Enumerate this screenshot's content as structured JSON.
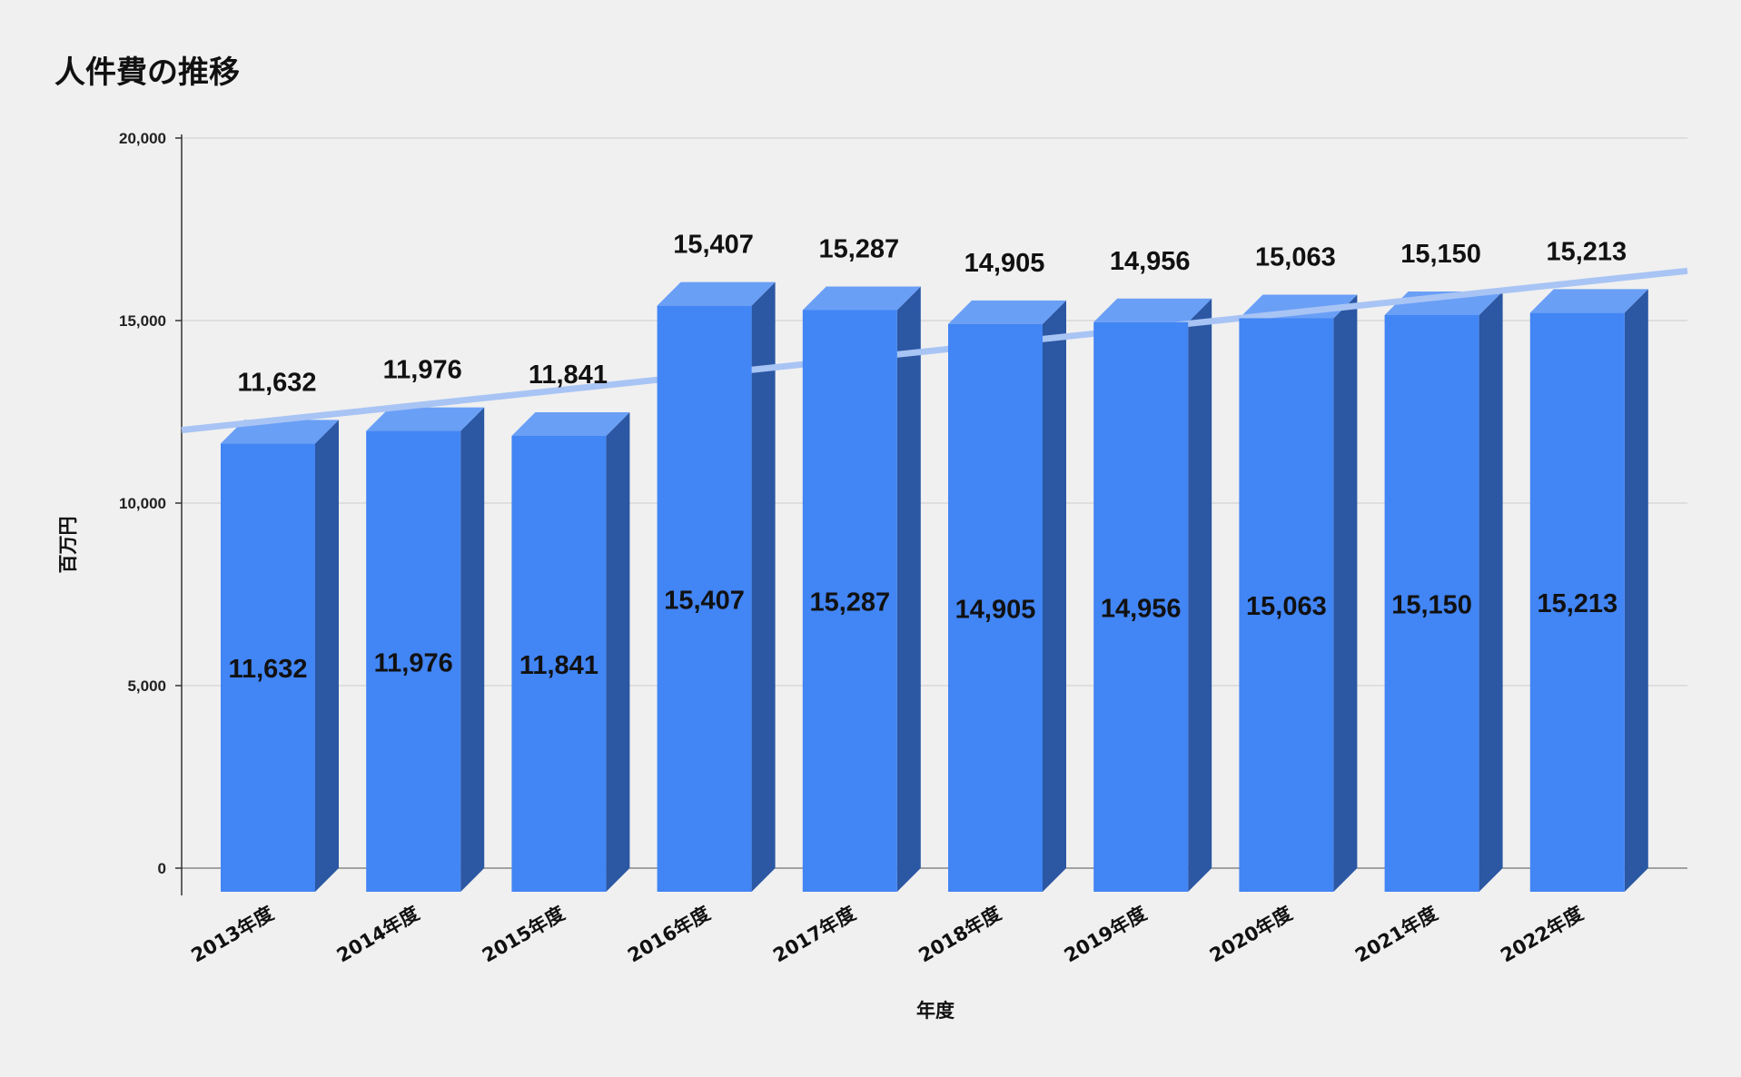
{
  "chart_data": {
    "type": "bar",
    "title": "人件費の推移",
    "xlabel": "年度",
    "ylabel": "百万円",
    "categories": [
      "2013年度",
      "2014年度",
      "2015年度",
      "2016年度",
      "2017年度",
      "2018年度",
      "2019年度",
      "2020年度",
      "2021年度",
      "2022年度"
    ],
    "values": [
      11632,
      11976,
      11841,
      15407,
      15287,
      14905,
      14956,
      15063,
      15150,
      15213
    ],
    "data_labels": [
      "11,632",
      "11,976",
      "11,841",
      "15,407",
      "15,287",
      "14,905",
      "14,956",
      "15,063",
      "15,150",
      "15,213"
    ],
    "ylim": [
      0,
      20000
    ],
    "yticks": [
      0,
      5000,
      10000,
      15000,
      20000
    ],
    "ytick_labels": [
      "0",
      "5,000",
      "10,000",
      "15,000",
      "20,000"
    ],
    "grid": true,
    "bar_style": "3d",
    "trendline": {
      "type": "linear",
      "start_value": 12000,
      "end_value": 16360
    },
    "colors": {
      "bar_front": "#4285f4",
      "bar_top": "#6a9ff6",
      "bar_side": "#2b57a3",
      "trendline": "#a8c4f4",
      "grid": "#cccccc",
      "background": "#f0f0f0"
    }
  }
}
